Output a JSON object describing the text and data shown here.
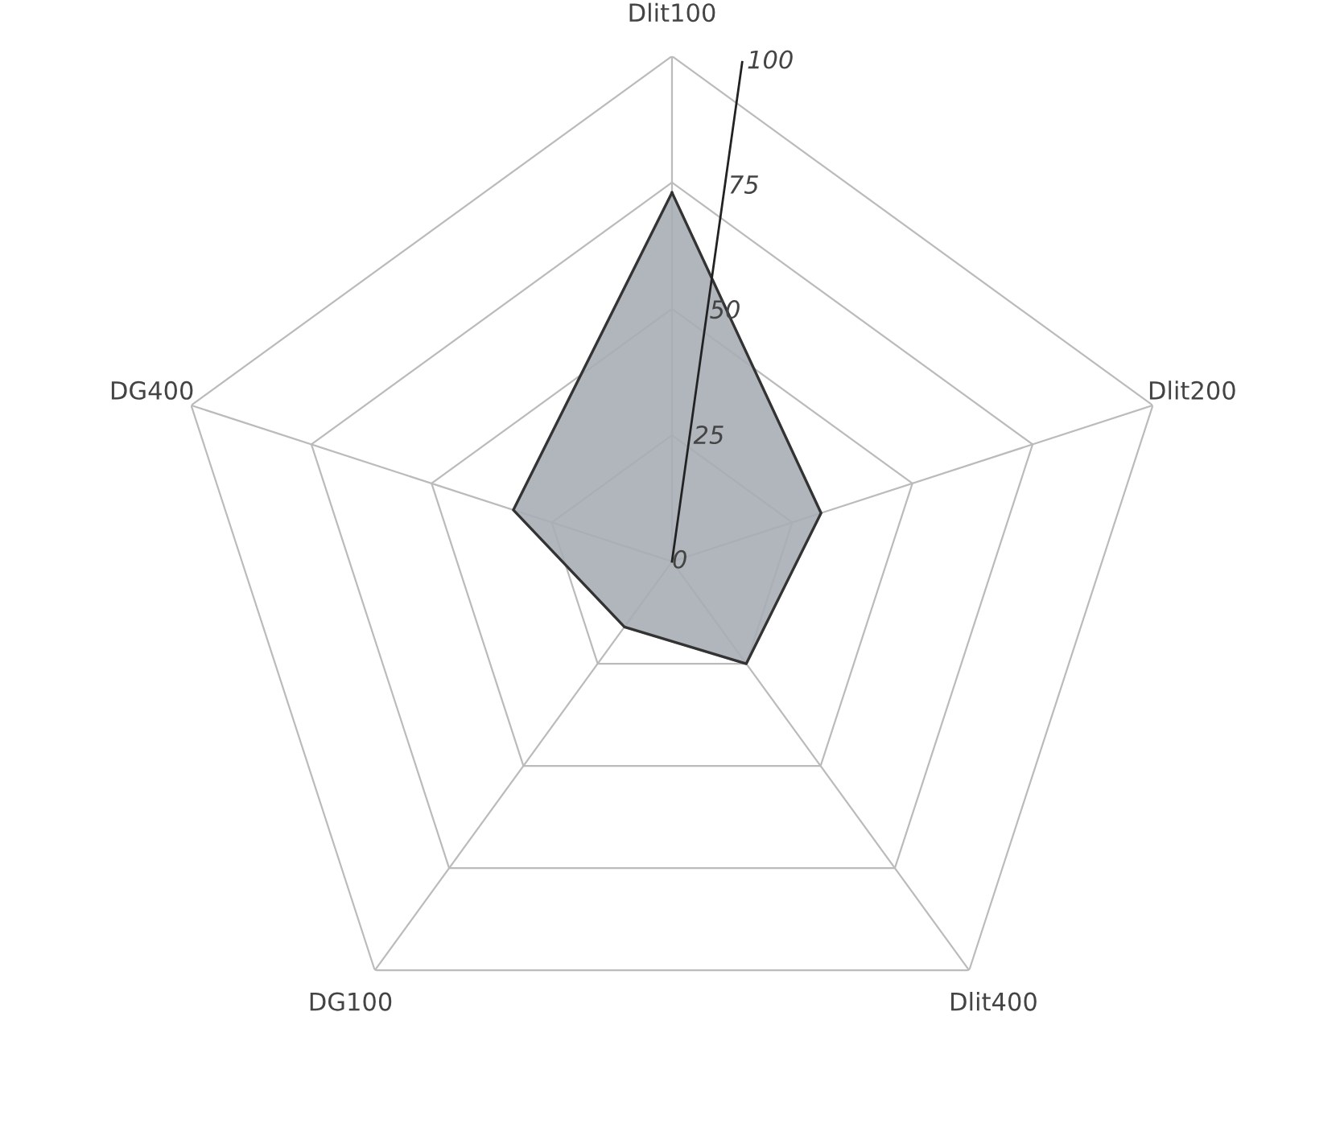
{
  "chart_data": {
    "type": "radar",
    "categories": [
      "Dlit100",
      "Dlit200",
      "Dlit400",
      "DG100",
      "DG400"
    ],
    "series": [
      {
        "color": "#a9aeb5",
        "values": [
          73,
          31,
          25,
          16,
          33
        ]
      }
    ],
    "ylim": [
      0,
      100
    ],
    "yticks": [
      0,
      25,
      50,
      75,
      100
    ],
    "grid": true,
    "legend": false
  }
}
